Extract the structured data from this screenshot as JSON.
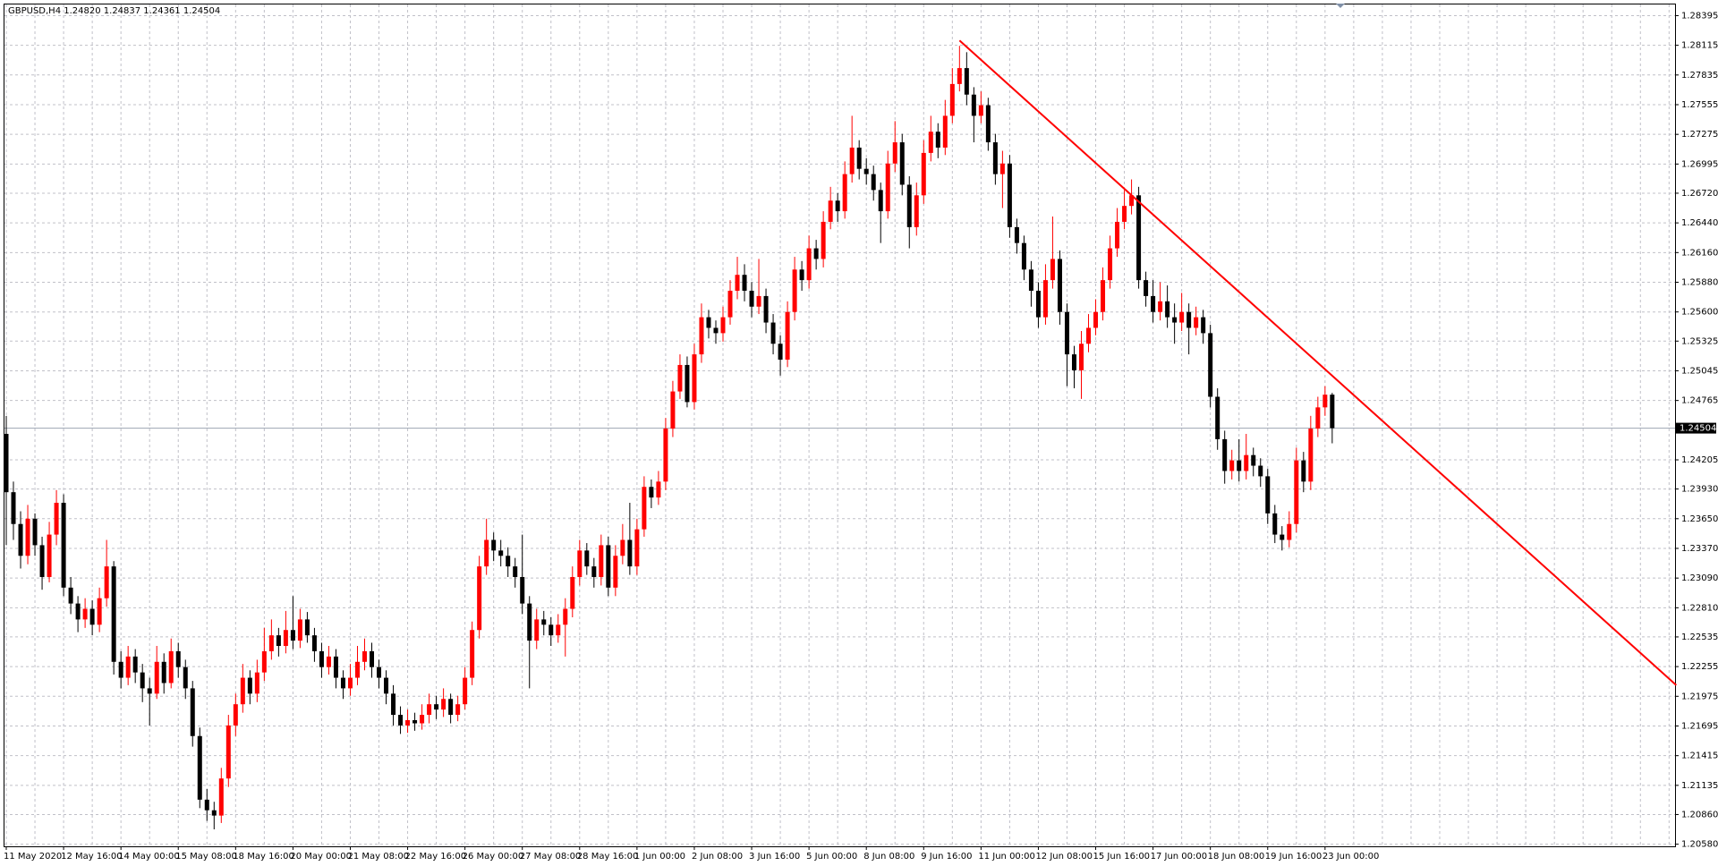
{
  "chart_data": {
    "type": "candlestick",
    "title": "GBPUSD,H4  1.24820 1.24837 1.24361 1.24504",
    "up_color": "#ff0000",
    "down_color": "#000000",
    "grid": true,
    "grid_color": "#c0c0c8",
    "ylim": [
      1.2056,
      1.285
    ],
    "yticks": [
      1.28395,
      1.28115,
      1.27835,
      1.27555,
      1.27275,
      1.26995,
      {
        "value": 1.2672,
        "label": "1.26720"
      },
      {
        "value": 1.2644,
        "label": "1.26440"
      },
      {
        "value": 1.2616,
        "label": "1.26160"
      },
      {
        "value": 1.2588,
        "label": "1.25880"
      },
      {
        "value": 1.256,
        "label": "1.25600"
      },
      1.25325,
      1.25045,
      1.24765,
      1.24205,
      {
        "value": 1.2393,
        "label": "1.23930"
      },
      {
        "value": 1.2365,
        "label": "1.23650"
      },
      {
        "value": 1.2337,
        "label": "1.23370"
      },
      {
        "value": 1.2309,
        "label": "1.23090"
      },
      {
        "value": 1.2281,
        "label": "1.22810"
      },
      1.22535,
      1.22255,
      1.21975,
      1.21695,
      1.21415,
      1.21135,
      {
        "value": 1.2086,
        "label": "1.20860"
      },
      {
        "value": 1.2058,
        "label": "1.20580"
      }
    ],
    "current_price": {
      "value": 1.24504,
      "label": "1.24504",
      "color": "#a8b0bc"
    },
    "trendline": {
      "color": "#ff0000",
      "x": [
        133,
        233
      ],
      "y": [
        1.2816,
        1.2208
      ]
    },
    "categories": [
      "11 May 2020",
      null,
      null,
      null,
      null,
      null,
      null,
      null,
      "12 May 16:00",
      null,
      null,
      null,
      null,
      null,
      null,
      null,
      "14 May 00:00",
      null,
      null,
      null,
      null,
      null,
      null,
      null,
      "15 May 08:00",
      null,
      null,
      null,
      null,
      null,
      null,
      null,
      "18 May 16:00",
      null,
      null,
      null,
      null,
      null,
      null,
      null,
      "20 May 00:00",
      null,
      null,
      null,
      null,
      null,
      null,
      null,
      "21 May 08:00",
      null,
      null,
      null,
      null,
      null,
      null,
      null,
      "22 May 16:00",
      null,
      null,
      null,
      null,
      null,
      null,
      null,
      "26 May 00:00",
      null,
      null,
      null,
      null,
      null,
      null,
      null,
      "27 May 08:00",
      null,
      null,
      null,
      null,
      null,
      null,
      null,
      "28 May 16:00",
      null,
      null,
      null,
      null,
      null,
      null,
      null,
      "1 Jun 00:00",
      null,
      null,
      null,
      null,
      null,
      null,
      null,
      "2 Jun 08:00",
      null,
      null,
      null,
      null,
      null,
      null,
      null,
      "3 Jun 16:00",
      null,
      null,
      null,
      null,
      null,
      null,
      null,
      "5 Jun 00:00",
      null,
      null,
      null,
      null,
      null,
      null,
      null,
      "8 Jun 08:00",
      null,
      null,
      null,
      null,
      null,
      null,
      null,
      "9 Jun 16:00",
      null,
      null,
      null,
      null,
      null,
      null,
      null,
      "11 Jun 00:00",
      null,
      null,
      null,
      null,
      null,
      null,
      null,
      "12 Jun 08:00",
      null,
      null,
      null,
      null,
      null,
      null,
      null,
      "15 Jun 16:00",
      null,
      null,
      null,
      null,
      null,
      null,
      null,
      "17 Jun 00:00",
      null,
      null,
      null,
      null,
      null,
      null,
      null,
      "18 Jun 08:00",
      null,
      null,
      null,
      null,
      null,
      null,
      null,
      "19 Jun 16:00",
      null,
      null,
      null,
      null,
      null,
      null,
      null,
      "23 Jun 00:00",
      null
    ],
    "ohlc": [
      [
        1.2445,
        1.2462,
        1.234,
        1.239
      ],
      [
        1.239,
        1.24,
        1.2345,
        1.236
      ],
      [
        1.236,
        1.2372,
        1.2318,
        1.233
      ],
      [
        1.233,
        1.2378,
        1.2322,
        1.2365
      ],
      [
        1.2365,
        1.237,
        1.233,
        1.234
      ],
      [
        1.234,
        1.2348,
        1.2298,
        1.231
      ],
      [
        1.231,
        1.2362,
        1.2305,
        1.235
      ],
      [
        1.235,
        1.2392,
        1.234,
        1.238
      ],
      [
        1.238,
        1.2388,
        1.2292,
        1.23
      ],
      [
        1.23,
        1.231,
        1.2275,
        1.2285
      ],
      [
        1.2285,
        1.2292,
        1.2258,
        1.227
      ],
      [
        1.227,
        1.229,
        1.2262,
        1.228
      ],
      [
        1.228,
        1.2288,
        1.2255,
        1.2265
      ],
      [
        1.2265,
        1.23,
        1.2258,
        1.229
      ],
      [
        1.229,
        1.2345,
        1.2282,
        1.232
      ],
      [
        1.232,
        1.2325,
        1.2218,
        1.223
      ],
      [
        1.223,
        1.224,
        1.2205,
        1.2215
      ],
      [
        1.2215,
        1.2245,
        1.2208,
        1.2235
      ],
      [
        1.2235,
        1.2242,
        1.221,
        1.222
      ],
      [
        1.222,
        1.2228,
        1.2192,
        1.2205
      ],
      [
        1.2205,
        1.2215,
        1.217,
        1.22
      ],
      [
        1.22,
        1.2245,
        1.2195,
        1.223
      ],
      [
        1.223,
        1.2238,
        1.22,
        1.221
      ],
      [
        1.221,
        1.2252,
        1.2205,
        1.224
      ],
      [
        1.224,
        1.2248,
        1.2215,
        1.2225
      ],
      [
        1.2225,
        1.2232,
        1.2195,
        1.2205
      ],
      [
        1.2205,
        1.2212,
        1.215,
        1.216
      ],
      [
        1.216,
        1.2168,
        1.2092,
        1.21
      ],
      [
        1.21,
        1.211,
        1.208,
        1.209
      ],
      [
        1.209,
        1.2098,
        1.2072,
        1.2085
      ],
      [
        1.2085,
        1.213,
        1.2078,
        1.212
      ],
      [
        1.212,
        1.218,
        1.2112,
        1.217
      ],
      [
        1.217,
        1.22,
        1.216,
        1.219
      ],
      [
        1.219,
        1.2228,
        1.2182,
        1.2215
      ],
      [
        1.2215,
        1.2222,
        1.219,
        1.22
      ],
      [
        1.22,
        1.2232,
        1.2192,
        1.222
      ],
      [
        1.222,
        1.2262,
        1.2212,
        1.224
      ],
      [
        1.224,
        1.227,
        1.2232,
        1.2255
      ],
      [
        1.2255,
        1.2262,
        1.2235,
        1.2245
      ],
      [
        1.2245,
        1.2278,
        1.2238,
        1.226
      ],
      [
        1.226,
        1.2292,
        1.2242,
        1.225
      ],
      [
        1.225,
        1.228,
        1.2243,
        1.227
      ],
      [
        1.227,
        1.2277,
        1.2248,
        1.2255
      ],
      [
        1.2255,
        1.2262,
        1.223,
        1.224
      ],
      [
        1.224,
        1.2248,
        1.2215,
        1.2225
      ],
      [
        1.2225,
        1.2245,
        1.2218,
        1.2235
      ],
      [
        1.2235,
        1.2242,
        1.2205,
        1.2215
      ],
      [
        1.2215,
        1.2222,
        1.2195,
        1.2205
      ],
      [
        1.2205,
        1.2228,
        1.2198,
        1.2215
      ],
      [
        1.2215,
        1.2245,
        1.2208,
        1.223
      ],
      [
        1.223,
        1.2252,
        1.2222,
        1.224
      ],
      [
        1.224,
        1.2248,
        1.2215,
        1.2225
      ],
      [
        1.2225,
        1.2232,
        1.2205,
        1.2215
      ],
      [
        1.2215,
        1.2222,
        1.219,
        1.22
      ],
      [
        1.22,
        1.2208,
        1.217,
        1.218
      ],
      [
        1.218,
        1.2188,
        1.2162,
        1.217
      ],
      [
        1.217,
        1.2185,
        1.2163,
        1.2175
      ],
      [
        1.2175,
        1.2182,
        1.2165,
        1.2172
      ],
      [
        1.2172,
        1.219,
        1.2166,
        1.218
      ],
      [
        1.218,
        1.22,
        1.2172,
        1.219
      ],
      [
        1.219,
        1.2198,
        1.2176,
        1.2185
      ],
      [
        1.2185,
        1.2205,
        1.2178,
        1.2195
      ],
      [
        1.2195,
        1.22,
        1.2172,
        1.218
      ],
      [
        1.218,
        1.2198,
        1.2174,
        1.219
      ],
      [
        1.219,
        1.2225,
        1.2185,
        1.2215
      ],
      [
        1.2215,
        1.2268,
        1.2208,
        1.226
      ],
      [
        1.226,
        1.233,
        1.2252,
        1.232
      ],
      [
        1.232,
        1.2365,
        1.2312,
        1.2345
      ],
      [
        1.2345,
        1.2352,
        1.2325,
        1.2335
      ],
      [
        1.2335,
        1.2345,
        1.232,
        1.233
      ],
      [
        1.233,
        1.2338,
        1.231,
        1.232
      ],
      [
        1.232,
        1.2328,
        1.23,
        1.231
      ],
      [
        1.231,
        1.235,
        1.2275,
        1.2285
      ],
      [
        1.2285,
        1.2292,
        1.2205,
        1.225
      ],
      [
        1.225,
        1.228,
        1.2242,
        1.227
      ],
      [
        1.227,
        1.2278,
        1.2255,
        1.2265
      ],
      [
        1.2265,
        1.2272,
        1.2245,
        1.2255
      ],
      [
        1.2255,
        1.2275,
        1.2248,
        1.2265
      ],
      [
        1.2265,
        1.229,
        1.2235,
        1.228
      ],
      [
        1.228,
        1.232,
        1.2272,
        1.231
      ],
      [
        1.231,
        1.2345,
        1.2302,
        1.2335
      ],
      [
        1.2335,
        1.2342,
        1.2312,
        1.232
      ],
      [
        1.232,
        1.2328,
        1.23,
        1.231
      ],
      [
        1.231,
        1.235,
        1.2302,
        1.234
      ],
      [
        1.234,
        1.2348,
        1.2292,
        1.23
      ],
      [
        1.23,
        1.234,
        1.2292,
        1.233
      ],
      [
        1.233,
        1.236,
        1.2322,
        1.2345
      ],
      [
        1.2345,
        1.238,
        1.2312,
        1.232
      ],
      [
        1.232,
        1.2365,
        1.2312,
        1.2355
      ],
      [
        1.2355,
        1.2405,
        1.2348,
        1.2395
      ],
      [
        1.2395,
        1.2402,
        1.2375,
        1.2385
      ],
      [
        1.2385,
        1.241,
        1.2378,
        1.24
      ],
      [
        1.24,
        1.246,
        1.2392,
        1.245
      ],
      [
        1.245,
        1.2495,
        1.2442,
        1.2485
      ],
      [
        1.2485,
        1.252,
        1.2478,
        1.251
      ],
      [
        1.251,
        1.2518,
        1.247,
        1.2475
      ],
      [
        1.2475,
        1.253,
        1.2468,
        1.252
      ],
      [
        1.252,
        1.2568,
        1.2512,
        1.2555
      ],
      [
        1.2555,
        1.2562,
        1.2535,
        1.2545
      ],
      [
        1.2545,
        1.2552,
        1.253,
        1.254
      ],
      [
        1.254,
        1.2565,
        1.2532,
        1.2555
      ],
      [
        1.2555,
        1.259,
        1.2548,
        1.258
      ],
      [
        1.258,
        1.2612,
        1.2572,
        1.2595
      ],
      [
        1.2595,
        1.2605,
        1.257,
        1.258
      ],
      [
        1.258,
        1.2588,
        1.2555,
        1.2565
      ],
      [
        1.2565,
        1.261,
        1.2558,
        1.2575
      ],
      [
        1.2575,
        1.2582,
        1.254,
        1.255
      ],
      [
        1.255,
        1.2558,
        1.252,
        1.253
      ],
      [
        1.253,
        1.2538,
        1.25,
        1.2515
      ],
      [
        1.2515,
        1.257,
        1.2508,
        1.256
      ],
      [
        1.256,
        1.2612,
        1.2552,
        1.26
      ],
      [
        1.26,
        1.2608,
        1.258,
        1.259
      ],
      [
        1.259,
        1.2632,
        1.2582,
        1.262
      ],
      [
        1.262,
        1.2628,
        1.26,
        1.261
      ],
      [
        1.261,
        1.2655,
        1.2602,
        1.2645
      ],
      [
        1.2645,
        1.2678,
        1.2638,
        1.2665
      ],
      [
        1.2665,
        1.2672,
        1.2645,
        1.2655
      ],
      [
        1.2655,
        1.2702,
        1.2648,
        1.269
      ],
      [
        1.269,
        1.2745,
        1.2682,
        1.2715
      ],
      [
        1.2715,
        1.2722,
        1.2685,
        1.2695
      ],
      [
        1.2695,
        1.2705,
        1.268,
        1.269
      ],
      [
        1.269,
        1.2698,
        1.2665,
        1.2675
      ],
      [
        1.2675,
        1.2682,
        1.2625,
        1.2655
      ],
      [
        1.2655,
        1.2712,
        1.2648,
        1.27
      ],
      [
        1.27,
        1.274,
        1.2692,
        1.272
      ],
      [
        1.272,
        1.2728,
        1.267,
        1.268
      ],
      [
        1.268,
        1.2688,
        1.262,
        1.264
      ],
      [
        1.264,
        1.2682,
        1.2632,
        1.267
      ],
      [
        1.267,
        1.2722,
        1.2662,
        1.271
      ],
      [
        1.271,
        1.2745,
        1.2702,
        1.273
      ],
      [
        1.273,
        1.2738,
        1.2705,
        1.2715
      ],
      [
        1.2715,
        1.276,
        1.2708,
        1.2745
      ],
      [
        1.2745,
        1.279,
        1.2738,
        1.2775
      ],
      [
        1.2775,
        1.2811,
        1.2768,
        1.279
      ],
      [
        1.279,
        1.2805,
        1.2755,
        1.2765
      ],
      [
        1.2765,
        1.2772,
        1.272,
        1.2745
      ],
      [
        1.2745,
        1.2768,
        1.2738,
        1.2755
      ],
      [
        1.2755,
        1.2762,
        1.2712,
        1.272
      ],
      [
        1.272,
        1.2728,
        1.268,
        1.269
      ],
      [
        1.269,
        1.2712,
        1.2658,
        1.27
      ],
      [
        1.27,
        1.2708,
        1.263,
        1.264
      ],
      [
        1.264,
        1.2648,
        1.2615,
        1.2625
      ],
      [
        1.2625,
        1.2632,
        1.259,
        1.26
      ],
      [
        1.26,
        1.2608,
        1.2565,
        1.258
      ],
      [
        1.258,
        1.2588,
        1.2545,
        1.2555
      ],
      [
        1.2555,
        1.2605,
        1.2548,
        1.259
      ],
      [
        1.259,
        1.265,
        1.2582,
        1.261
      ],
      [
        1.261,
        1.2618,
        1.2548,
        1.256
      ],
      [
        1.256,
        1.2568,
        1.249,
        1.252
      ],
      [
        1.252,
        1.2528,
        1.2488,
        1.2505
      ],
      [
        1.2505,
        1.2542,
        1.2478,
        1.253
      ],
      [
        1.253,
        1.2558,
        1.2522,
        1.2545
      ],
      [
        1.2545,
        1.2572,
        1.2538,
        1.256
      ],
      [
        1.256,
        1.2602,
        1.2552,
        1.259
      ],
      [
        1.259,
        1.2632,
        1.2582,
        1.262
      ],
      [
        1.262,
        1.2658,
        1.2612,
        1.2645
      ],
      [
        1.2645,
        1.2675,
        1.2638,
        1.266
      ],
      [
        1.266,
        1.2685,
        1.2652,
        1.267
      ],
      [
        1.267,
        1.2678,
        1.2582,
        1.259
      ],
      [
        1.259,
        1.2598,
        1.2565,
        1.2575
      ],
      [
        1.2575,
        1.259,
        1.255,
        1.256
      ],
      [
        1.256,
        1.2588,
        1.2552,
        1.257
      ],
      [
        1.257,
        1.2585,
        1.2545,
        1.2555
      ],
      [
        1.2555,
        1.2568,
        1.253,
        1.255
      ],
      [
        1.255,
        1.2578,
        1.2542,
        1.256
      ],
      [
        1.256,
        1.2568,
        1.252,
        1.2545
      ],
      [
        1.2545,
        1.2565,
        1.2538,
        1.2555
      ],
      [
        1.2555,
        1.2562,
        1.253,
        1.254
      ],
      [
        1.254,
        1.2548,
        1.247,
        1.248
      ],
      [
        1.248,
        1.2488,
        1.243,
        1.244
      ],
      [
        1.244,
        1.2448,
        1.2398,
        1.241
      ],
      [
        1.241,
        1.243,
        1.2402,
        1.242
      ],
      [
        1.242,
        1.244,
        1.24,
        1.241
      ],
      [
        1.241,
        1.2445,
        1.2402,
        1.2425
      ],
      [
        1.2425,
        1.2432,
        1.2405,
        1.2415
      ],
      [
        1.2415,
        1.2422,
        1.2395,
        1.2405
      ],
      [
        1.2405,
        1.2412,
        1.236,
        1.237
      ],
      [
        1.237,
        1.2378,
        1.2342,
        1.235
      ],
      [
        1.235,
        1.2358,
        1.2335,
        1.2345
      ],
      [
        1.2345,
        1.2372,
        1.2338,
        1.236
      ],
      [
        1.236,
        1.2432,
        1.2352,
        1.242
      ],
      [
        1.242,
        1.2428,
        1.239,
        1.24
      ],
      [
        1.24,
        1.2462,
        1.2392,
        1.245
      ],
      [
        1.245,
        1.248,
        1.2442,
        1.247
      ],
      [
        1.247,
        1.249,
        1.2462,
        1.2482
      ],
      [
        1.2482,
        1.24837,
        1.24361,
        1.24504
      ]
    ]
  }
}
